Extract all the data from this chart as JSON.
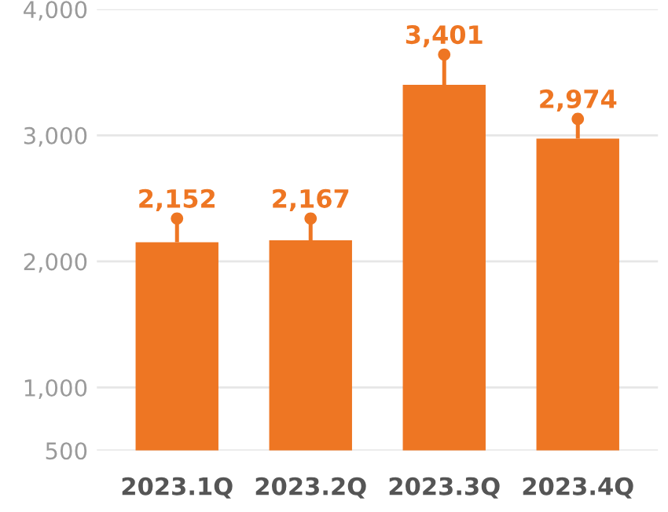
{
  "chart_data": {
    "type": "bar",
    "categories": [
      "2023.1Q",
      "2023.2Q",
      "2023.3Q",
      "2023.4Q"
    ],
    "values": [
      2152,
      2167,
      3401,
      2974
    ],
    "errors": [
      [
        2152,
        2340
      ],
      [
        2167,
        2340
      ],
      [
        3401,
        3640
      ],
      [
        2974,
        3130
      ]
    ],
    "color": "#ee7623",
    "series": [
      {
        "type": "scatter",
        "x": [
          "2023.1Q",
          "2023.2Q",
          "2023.3Q",
          "2023.4Q"
        ],
        "values": [
          2340,
          2340,
          3640,
          3130
        ],
        "color": "#ee7623"
      }
    ],
    "marker": "circle",
    "ylim": [
      500,
      4000
    ],
    "yticks": [
      500,
      {
        "value": 1000,
        "label": "1,000"
      },
      {
        "value": 2000,
        "label": "2,000"
      },
      {
        "value": 3000,
        "label": "3,000"
      },
      {
        "value": 4000,
        "label": "4,000"
      }
    ],
    "grid": "y",
    "value_labels": [
      "2,152",
      "2,167",
      "3,401",
      "2,974"
    ]
  }
}
